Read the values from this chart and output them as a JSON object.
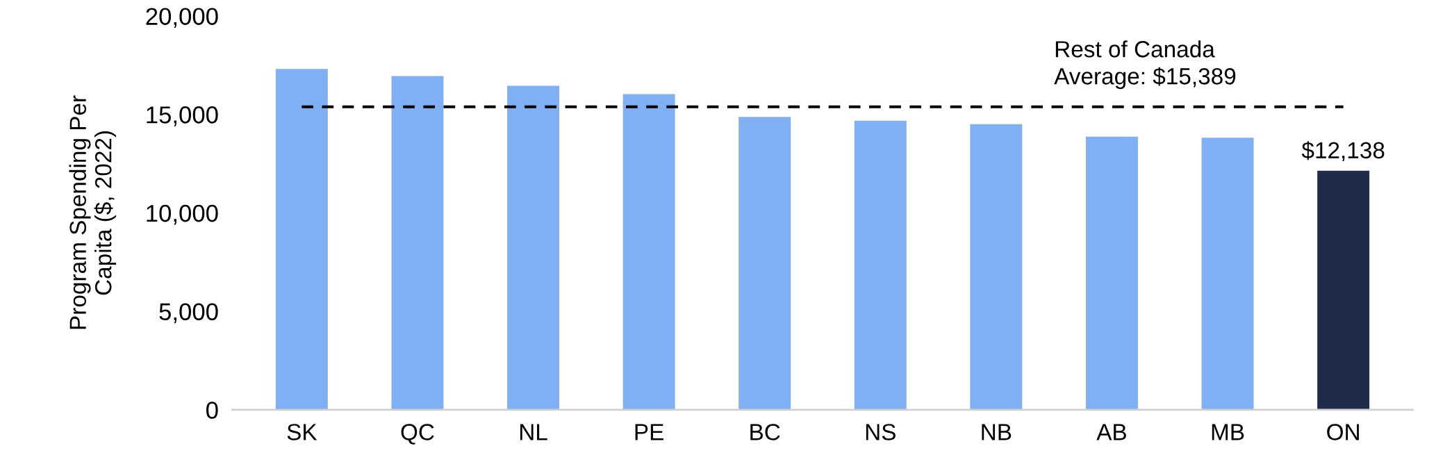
{
  "chart_data": {
    "type": "bar",
    "ylabel": "Program Spending Per\nCapita ($, 2022)",
    "categories": [
      "SK",
      "QC",
      "NL",
      "PE",
      "BC",
      "NS",
      "NB",
      "AB",
      "MB",
      "ON"
    ],
    "values": [
      17310,
      16950,
      16460,
      16030,
      14880,
      14680,
      14510,
      13870,
      13820,
      12138
    ],
    "colors": [
      "#7fb0f4",
      "#7fb0f4",
      "#7fb0f4",
      "#7fb0f4",
      "#7fb0f4",
      "#7fb0f4",
      "#7fb0f4",
      "#7fb0f4",
      "#7fb0f4",
      "#1e2c4a"
    ],
    "value_labels": [
      null,
      null,
      null,
      null,
      null,
      null,
      null,
      null,
      null,
      "$12,138"
    ],
    "ylim": [
      0,
      20000
    ],
    "yticks": [
      {
        "value": 0,
        "label": "0"
      },
      {
        "value": 5000,
        "label": "5,000"
      },
      {
        "value": 10000,
        "label": "10,000"
      },
      {
        "value": 15000,
        "label": "15,000"
      },
      {
        "value": 20000,
        "label": "20,000"
      }
    ],
    "ref_lines": [
      {
        "axis": "y",
        "value": 15389,
        "label": "Rest of Canada\nAverage: $15,389",
        "color": "#000000",
        "line_style": "dashed"
      }
    ],
    "grid": false,
    "legend": false
  }
}
